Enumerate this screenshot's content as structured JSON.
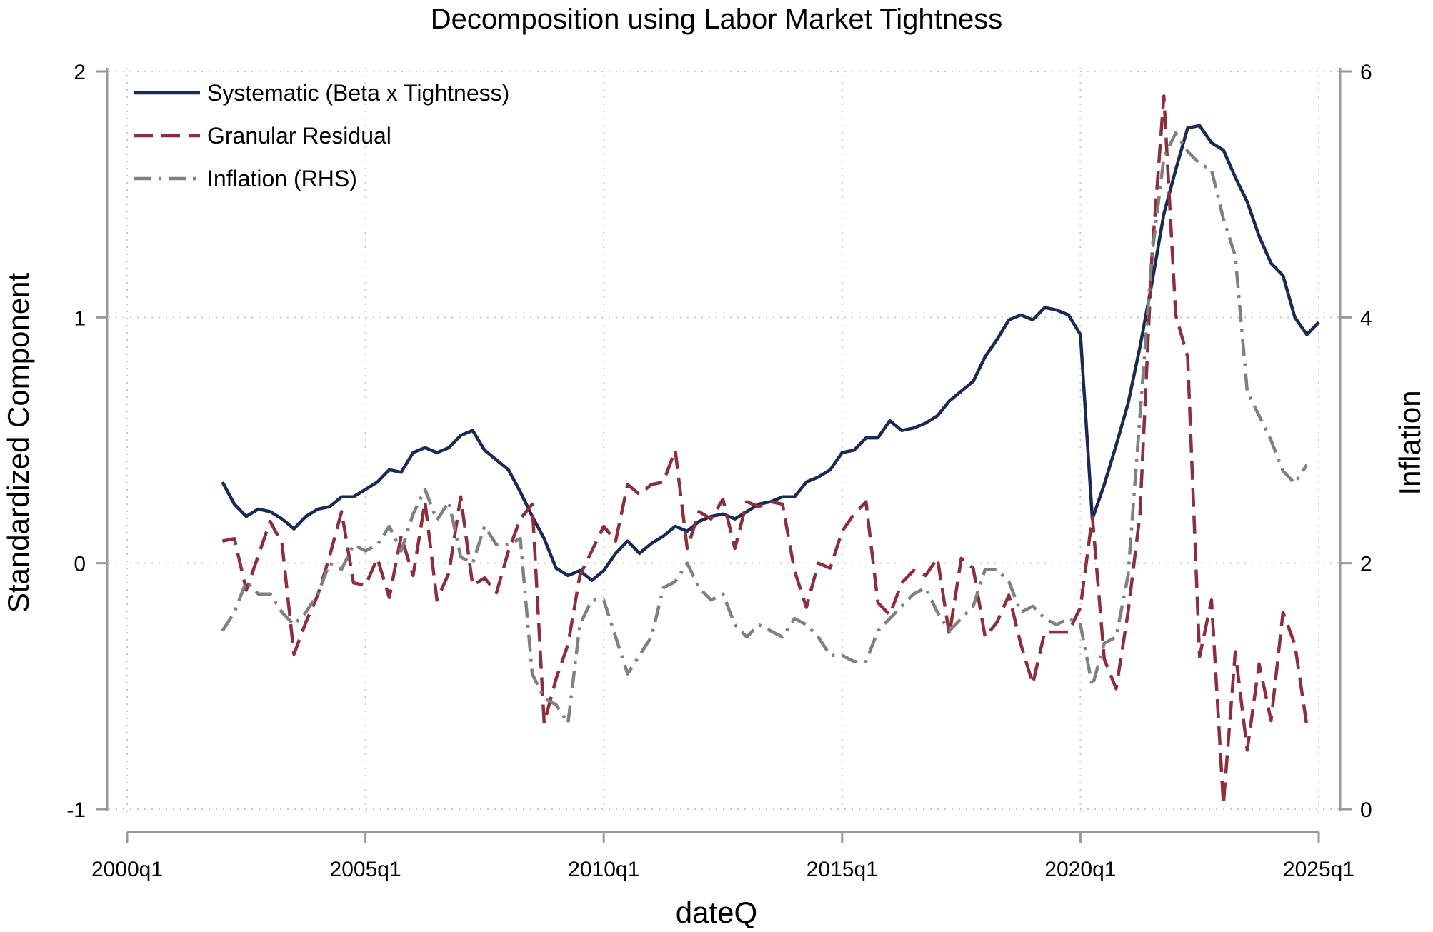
{
  "chart_data": {
    "type": "line",
    "title": "Decomposition using Labor Market Tightness",
    "xlabel": "dateQ",
    "ylabel": "Standardized Component",
    "y2label": "Inflation",
    "xlim": [
      2000.0,
      2025.0
    ],
    "ylim": [
      -1,
      2
    ],
    "y2lim": [
      0,
      6
    ],
    "x_ticks": [
      {
        "value": 2000.0,
        "label": "2000q1"
      },
      {
        "value": 2005.0,
        "label": "2005q1"
      },
      {
        "value": 2010.0,
        "label": "2010q1"
      },
      {
        "value": 2015.0,
        "label": "2015q1"
      },
      {
        "value": 2020.0,
        "label": "2020q1"
      },
      {
        "value": 2025.0,
        "label": "2025q1"
      }
    ],
    "y_ticks": [
      {
        "value": -1,
        "label": "-1"
      },
      {
        "value": 0,
        "label": "0"
      },
      {
        "value": 1,
        "label": "1"
      },
      {
        "value": 2,
        "label": "2"
      }
    ],
    "y2_ticks": [
      {
        "value": 0,
        "label": "0"
      },
      {
        "value": 2,
        "label": "2"
      },
      {
        "value": 4,
        "label": "4"
      },
      {
        "value": 6,
        "label": "6"
      }
    ],
    "grid": true,
    "legend": {
      "position": "top-left"
    },
    "series": [
      {
        "name": "Systematic (Beta x Tightness)",
        "axis": "left",
        "color": "#1b2a52",
        "style": "solid",
        "points": [
          [
            "2002q1",
            0.33
          ],
          [
            "2002q2",
            0.24
          ],
          [
            "2002q3",
            0.19
          ],
          [
            "2002q4",
            0.22
          ],
          [
            "2003q1",
            0.21
          ],
          [
            "2003q2",
            0.18
          ],
          [
            "2003q3",
            0.14
          ],
          [
            "2003q4",
            0.19
          ],
          [
            "2004q1",
            0.22
          ],
          [
            "2004q2",
            0.23
          ],
          [
            "2004q3",
            0.27
          ],
          [
            "2004q4",
            0.27
          ],
          [
            "2005q1",
            0.3
          ],
          [
            "2005q2",
            0.33
          ],
          [
            "2005q3",
            0.38
          ],
          [
            "2005q4",
            0.37
          ],
          [
            "2006q1",
            0.45
          ],
          [
            "2006q2",
            0.47
          ],
          [
            "2006q3",
            0.45
          ],
          [
            "2006q4",
            0.47
          ],
          [
            "2007q1",
            0.52
          ],
          [
            "2007q2",
            0.54
          ],
          [
            "2007q3",
            0.46
          ],
          [
            "2007q4",
            0.42
          ],
          [
            "2008q1",
            0.38
          ],
          [
            "2008q2",
            0.29
          ],
          [
            "2008q3",
            0.19
          ],
          [
            "2008q4",
            0.1
          ],
          [
            "2009q1",
            -0.02
          ],
          [
            "2009q2",
            -0.05
          ],
          [
            "2009q3",
            -0.03
          ],
          [
            "2009q4",
            -0.07
          ],
          [
            "2010q1",
            -0.03
          ],
          [
            "2010q2",
            0.04
          ],
          [
            "2010q3",
            0.09
          ],
          [
            "2010q4",
            0.04
          ],
          [
            "2011q1",
            0.08
          ],
          [
            "2011q2",
            0.11
          ],
          [
            "2011q3",
            0.15
          ],
          [
            "2011q4",
            0.13
          ],
          [
            "2012q1",
            0.17
          ],
          [
            "2012q2",
            0.19
          ],
          [
            "2012q3",
            0.2
          ],
          [
            "2012q4",
            0.18
          ],
          [
            "2013q1",
            0.21
          ],
          [
            "2013q2",
            0.24
          ],
          [
            "2013q3",
            0.25
          ],
          [
            "2013q4",
            0.27
          ],
          [
            "2014q1",
            0.27
          ],
          [
            "2014q2",
            0.33
          ],
          [
            "2014q3",
            0.35
          ],
          [
            "2014q4",
            0.38
          ],
          [
            "2015q1",
            0.45
          ],
          [
            "2015q2",
            0.46
          ],
          [
            "2015q3",
            0.51
          ],
          [
            "2015q4",
            0.51
          ],
          [
            "2016q1",
            0.58
          ],
          [
            "2016q2",
            0.54
          ],
          [
            "2016q3",
            0.55
          ],
          [
            "2016q4",
            0.57
          ],
          [
            "2017q1",
            0.6
          ],
          [
            "2017q2",
            0.66
          ],
          [
            "2017q3",
            0.7
          ],
          [
            "2017q4",
            0.74
          ],
          [
            "2018q1",
            0.84
          ],
          [
            "2018q2",
            0.91
          ],
          [
            "2018q3",
            0.99
          ],
          [
            "2018q4",
            1.01
          ],
          [
            "2019q1",
            0.99
          ],
          [
            "2019q2",
            1.04
          ],
          [
            "2019q3",
            1.03
          ],
          [
            "2019q4",
            1.01
          ],
          [
            "2020q1",
            0.93
          ],
          [
            "2020q2",
            0.18
          ],
          [
            "2020q3",
            0.32
          ],
          [
            "2020q4",
            0.48
          ],
          [
            "2021q1",
            0.65
          ],
          [
            "2021q2",
            0.88
          ],
          [
            "2021q3",
            1.14
          ],
          [
            "2021q4",
            1.42
          ],
          [
            "2022q1",
            1.6
          ],
          [
            "2022q2",
            1.77
          ],
          [
            "2022q3",
            1.78
          ],
          [
            "2022q4",
            1.71
          ],
          [
            "2023q1",
            1.68
          ],
          [
            "2023q2",
            1.57
          ],
          [
            "2023q3",
            1.47
          ],
          [
            "2023q4",
            1.33
          ],
          [
            "2024q1",
            1.22
          ],
          [
            "2024q2",
            1.17
          ],
          [
            "2024q3",
            1.0
          ],
          [
            "2024q4",
            0.93
          ],
          [
            "2025q1",
            0.98
          ]
        ]
      },
      {
        "name": "Granular Residual",
        "axis": "left",
        "color": "#8c2f3c",
        "style": "dash",
        "points": [
          [
            "2002q1",
            0.09
          ],
          [
            "2002q2",
            0.1
          ],
          [
            "2002q3",
            -0.11
          ],
          [
            "2002q4",
            0.03
          ],
          [
            "2003q1",
            0.17
          ],
          [
            "2003q2",
            0.08
          ],
          [
            "2003q3",
            -0.37
          ],
          [
            "2003q4",
            -0.24
          ],
          [
            "2004q1",
            -0.13
          ],
          [
            "2004q2",
            0.03
          ],
          [
            "2004q3",
            0.21
          ],
          [
            "2004q4",
            -0.08
          ],
          [
            "2005q1",
            -0.09
          ],
          [
            "2005q2",
            0.02
          ],
          [
            "2005q3",
            -0.14
          ],
          [
            "2005q4",
            0.11
          ],
          [
            "2006q1",
            -0.05
          ],
          [
            "2006q2",
            0.25
          ],
          [
            "2006q3",
            -0.15
          ],
          [
            "2006q4",
            -0.04
          ],
          [
            "2007q1",
            0.27
          ],
          [
            "2007q2",
            -0.09
          ],
          [
            "2007q3",
            -0.06
          ],
          [
            "2007q4",
            -0.12
          ],
          [
            "2008q1",
            0.05
          ],
          [
            "2008q2",
            0.18
          ],
          [
            "2008q3",
            0.24
          ],
          [
            "2008q4",
            -0.65
          ],
          [
            "2009q1",
            -0.47
          ],
          [
            "2009q2",
            -0.33
          ],
          [
            "2009q3",
            -0.05
          ],
          [
            "2009q4",
            0.05
          ],
          [
            "2010q1",
            0.15
          ],
          [
            "2010q2",
            0.09
          ],
          [
            "2010q3",
            0.32
          ],
          [
            "2010q4",
            0.28
          ],
          [
            "2011q1",
            0.32
          ],
          [
            "2011q2",
            0.33
          ],
          [
            "2011q3",
            0.46
          ],
          [
            "2011q4",
            0.06
          ],
          [
            "2012q1",
            0.21
          ],
          [
            "2012q2",
            0.18
          ],
          [
            "2012q3",
            0.26
          ],
          [
            "2012q4",
            0.06
          ],
          [
            "2013q1",
            0.25
          ],
          [
            "2013q2",
            0.23
          ],
          [
            "2013q3",
            0.25
          ],
          [
            "2013q4",
            0.24
          ],
          [
            "2014q1",
            -0.03
          ],
          [
            "2014q2",
            -0.18
          ],
          [
            "2014q3",
            0.0
          ],
          [
            "2014q4",
            -0.02
          ],
          [
            "2015q1",
            0.13
          ],
          [
            "2015q2",
            0.2
          ],
          [
            "2015q3",
            0.25
          ],
          [
            "2015q4",
            -0.16
          ],
          [
            "2016q1",
            -0.21
          ],
          [
            "2016q2",
            -0.08
          ],
          [
            "2016q3",
            -0.03
          ],
          [
            "2016q4",
            -0.05
          ],
          [
            "2017q1",
            0.02
          ],
          [
            "2017q2",
            -0.29
          ],
          [
            "2017q3",
            0.02
          ],
          [
            "2017q4",
            -0.02
          ],
          [
            "2018q1",
            -0.3
          ],
          [
            "2018q2",
            -0.24
          ],
          [
            "2018q3",
            -0.13
          ],
          [
            "2018q4",
            -0.33
          ],
          [
            "2019q1",
            -0.49
          ],
          [
            "2019q2",
            -0.28
          ],
          [
            "2019q3",
            -0.28
          ],
          [
            "2019q4",
            -0.28
          ],
          [
            "2020q1",
            -0.18
          ],
          [
            "2020q2",
            0.19
          ],
          [
            "2020q3",
            -0.39
          ],
          [
            "2020q4",
            -0.51
          ],
          [
            "2021q1",
            -0.2
          ],
          [
            "2021q2",
            0.2
          ],
          [
            "2021q3",
            1.25
          ],
          [
            "2021q4",
            1.9
          ],
          [
            "2022q1",
            1.01
          ],
          [
            "2022q2",
            0.84
          ],
          [
            "2022q3",
            -0.38
          ],
          [
            "2022q4",
            -0.15
          ],
          [
            "2023q1",
            -0.98
          ],
          [
            "2023q2",
            -0.36
          ],
          [
            "2023q3",
            -0.76
          ],
          [
            "2023q4",
            -0.41
          ],
          [
            "2024q1",
            -0.64
          ],
          [
            "2024q2",
            -0.2
          ],
          [
            "2024q3",
            -0.33
          ],
          [
            "2024q4",
            -0.66
          ]
        ]
      },
      {
        "name": "Inflation (RHS)",
        "axis": "right",
        "color": "#808080",
        "style": "dashdot",
        "points": [
          [
            "2002q1",
            1.45
          ],
          [
            "2002q2",
            1.6
          ],
          [
            "2002q3",
            1.85
          ],
          [
            "2002q4",
            1.75
          ],
          [
            "2003q1",
            1.75
          ],
          [
            "2003q2",
            1.6
          ],
          [
            "2003q3",
            1.5
          ],
          [
            "2003q4",
            1.6
          ],
          [
            "2004q1",
            1.75
          ],
          [
            "2004q2",
            2.0
          ],
          [
            "2004q3",
            1.95
          ],
          [
            "2004q4",
            2.15
          ],
          [
            "2005q1",
            2.1
          ],
          [
            "2005q2",
            2.15
          ],
          [
            "2005q3",
            2.3
          ],
          [
            "2005q4",
            2.1
          ],
          [
            "2006q1",
            2.4
          ],
          [
            "2006q2",
            2.6
          ],
          [
            "2006q3",
            2.35
          ],
          [
            "2006q4",
            2.5
          ],
          [
            "2007q1",
            2.05
          ],
          [
            "2007q2",
            2.0
          ],
          [
            "2007q3",
            2.3
          ],
          [
            "2007q4",
            2.15
          ],
          [
            "2008q1",
            2.15
          ],
          [
            "2008q2",
            2.2
          ],
          [
            "2008q3",
            1.1
          ],
          [
            "2008q4",
            0.9
          ],
          [
            "2009q1",
            0.85
          ],
          [
            "2009q2",
            0.7
          ],
          [
            "2009q3",
            1.5
          ],
          [
            "2009q4",
            1.7
          ],
          [
            "2010q1",
            1.7
          ],
          [
            "2010q2",
            1.4
          ],
          [
            "2010q3",
            1.1
          ],
          [
            "2010q4",
            1.25
          ],
          [
            "2011q1",
            1.4
          ],
          [
            "2011q2",
            1.8
          ],
          [
            "2011q3",
            1.85
          ],
          [
            "2011q4",
            2.0
          ],
          [
            "2012q1",
            1.8
          ],
          [
            "2012q2",
            1.7
          ],
          [
            "2012q3",
            1.75
          ],
          [
            "2012q4",
            1.5
          ],
          [
            "2013q1",
            1.4
          ],
          [
            "2013q2",
            1.5
          ],
          [
            "2013q3",
            1.45
          ],
          [
            "2013q4",
            1.4
          ],
          [
            "2014q1",
            1.55
          ],
          [
            "2014q2",
            1.5
          ],
          [
            "2014q3",
            1.4
          ],
          [
            "2014q4",
            1.25
          ],
          [
            "2015q1",
            1.25
          ],
          [
            "2015q2",
            1.2
          ],
          [
            "2015q3",
            1.2
          ],
          [
            "2015q4",
            1.45
          ],
          [
            "2016q1",
            1.55
          ],
          [
            "2016q2",
            1.65
          ],
          [
            "2016q3",
            1.75
          ],
          [
            "2016q4",
            1.8
          ],
          [
            "2017q1",
            1.6
          ],
          [
            "2017q2",
            1.45
          ],
          [
            "2017q3",
            1.55
          ],
          [
            "2017q4",
            1.65
          ],
          [
            "2018q1",
            1.95
          ],
          [
            "2018q2",
            1.95
          ],
          [
            "2018q3",
            1.85
          ],
          [
            "2018q4",
            1.6
          ],
          [
            "2019q1",
            1.65
          ],
          [
            "2019q2",
            1.55
          ],
          [
            "2019q3",
            1.5
          ],
          [
            "2019q4",
            1.55
          ],
          [
            "2020q1",
            1.5
          ],
          [
            "2020q2",
            1.0
          ],
          [
            "2020q3",
            1.35
          ],
          [
            "2020q4",
            1.4
          ],
          [
            "2021q1",
            1.9
          ],
          [
            "2021q2",
            3.2
          ],
          [
            "2021q3",
            4.5
          ],
          [
            "2021q4",
            5.3
          ],
          [
            "2022q1",
            5.5
          ],
          [
            "2022q2",
            5.35
          ],
          [
            "2022q3",
            5.25
          ],
          [
            "2022q4",
            5.2
          ],
          [
            "2023q1",
            4.8
          ],
          [
            "2023q2",
            4.5
          ],
          [
            "2023q3",
            3.4
          ],
          [
            "2023q4",
            3.2
          ],
          [
            "2024q1",
            3.0
          ],
          [
            "2024q2",
            2.75
          ],
          [
            "2024q3",
            2.65
          ],
          [
            "2024q4",
            2.8
          ]
        ]
      }
    ]
  }
}
